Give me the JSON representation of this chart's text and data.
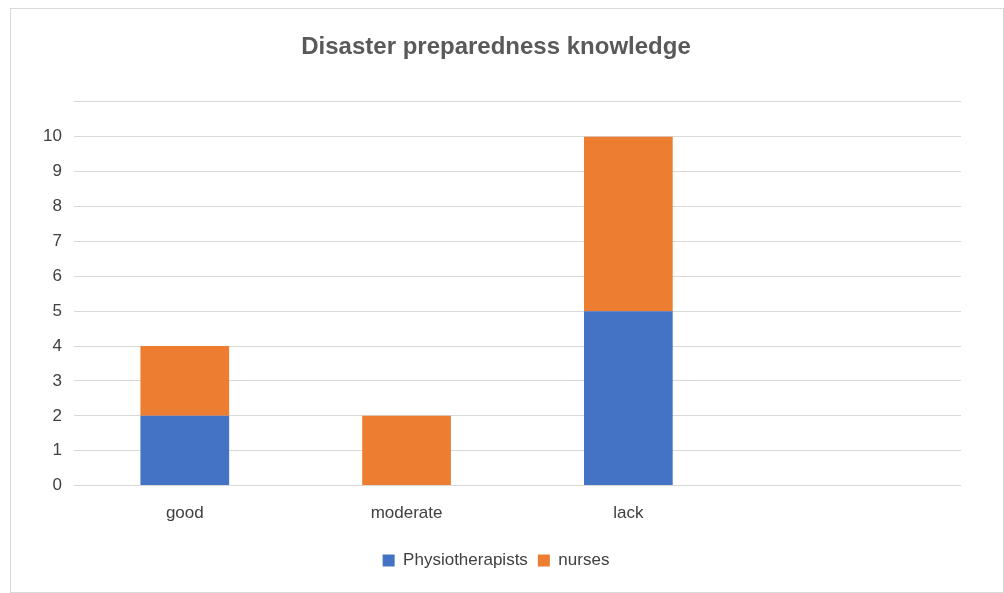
{
  "chart_data": {
    "type": "bar",
    "title": "Disaster preparedness knowledge",
    "categories": [
      "good",
      "moderate",
      "lack",
      null
    ],
    "stacked": true,
    "series": [
      {
        "name": "Physiotherapists",
        "color": "#4472c4",
        "values": [
          2,
          0,
          5,
          null
        ]
      },
      {
        "name": "nurses",
        "color": "#ed7d31",
        "values": [
          2,
          2,
          5,
          null
        ]
      }
    ],
    "ylim": [
      0,
      11
    ],
    "yticks": [
      0,
      1,
      2,
      3,
      4,
      5,
      6,
      7,
      8,
      9,
      10,
      {
        "value": 11,
        "label": null
      }
    ],
    "grid": "y",
    "legend": "bottom"
  }
}
